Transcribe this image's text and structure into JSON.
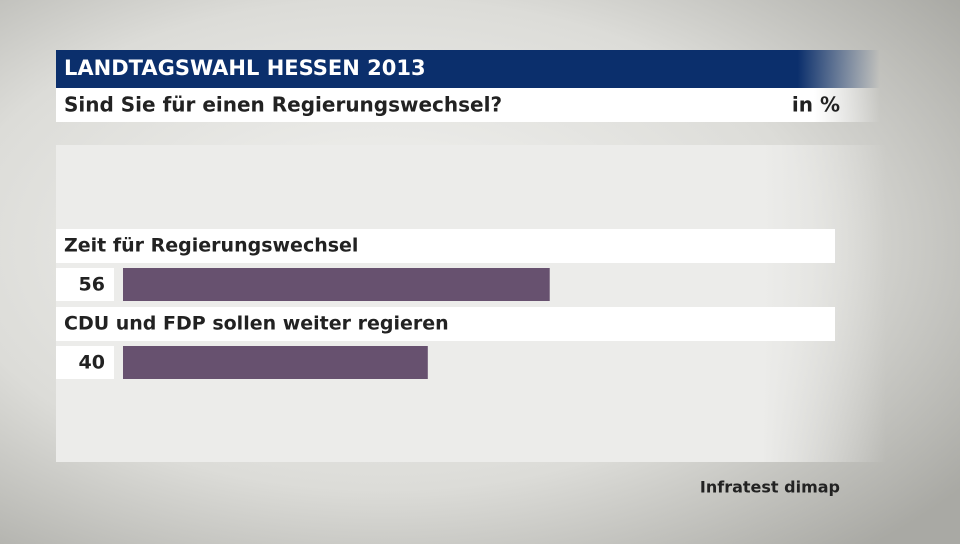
{
  "chart_data": {
    "type": "bar",
    "orientation": "horizontal",
    "title": "LANDTAGSWAHL HESSEN 2013",
    "subtitle": "Sind Sie für einen Regierungswechsel?",
    "unit": "in %",
    "categories": [
      "Zeit für Regierungswechsel",
      "CDU und FDP sollen weiter regieren"
    ],
    "values": [
      56,
      40
    ],
    "color": "#67516f",
    "source": "Infratest dimap"
  }
}
